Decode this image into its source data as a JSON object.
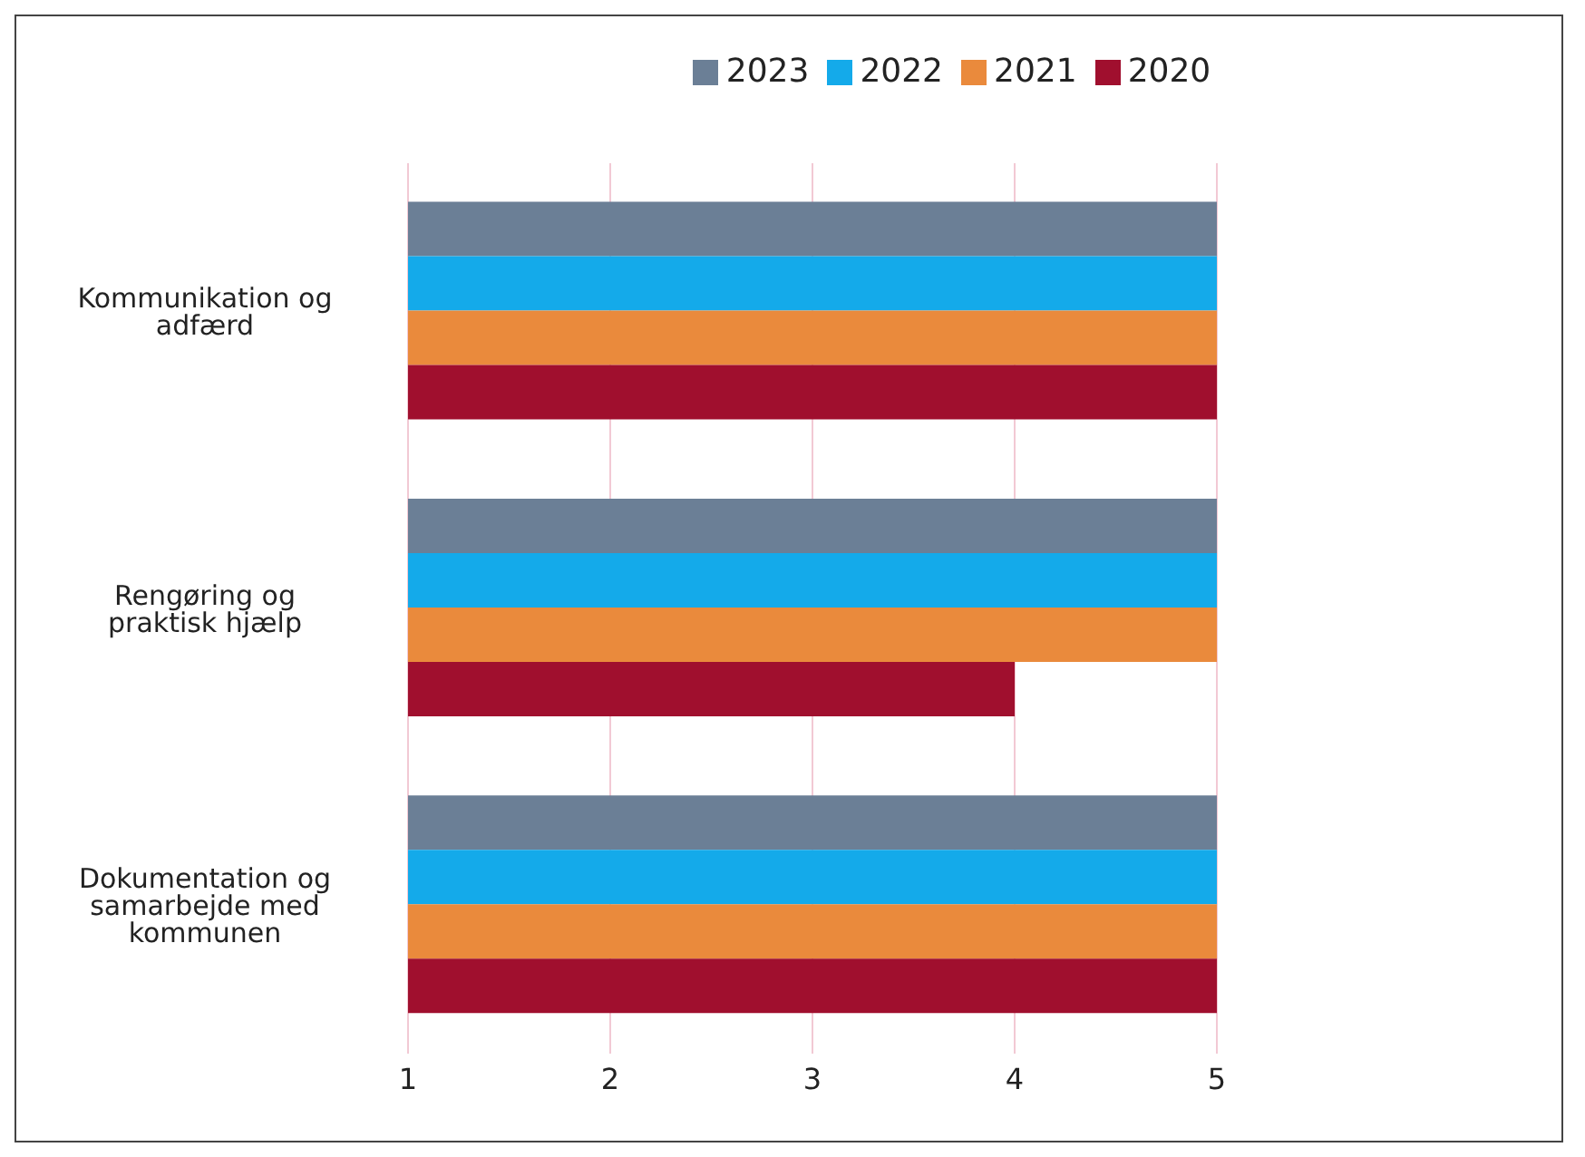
{
  "chart_data": {
    "type": "bar",
    "orientation": "horizontal",
    "categories": [
      "Kommunikation og adfærd",
      "Rengøring og praktisk hjælp",
      "Dokumentation og samarbejde med kommunen"
    ],
    "series": [
      {
        "name": "2023",
        "color": "#6b7f96",
        "values": [
          5,
          5,
          5
        ]
      },
      {
        "name": "2022",
        "color": "#14aaea",
        "values": [
          5,
          5,
          5
        ]
      },
      {
        "name": "2021",
        "color": "#ea8a3c",
        "values": [
          5,
          5,
          5
        ]
      },
      {
        "name": "2020",
        "color": "#a00f2e",
        "values": [
          5,
          4,
          5
        ]
      }
    ],
    "xlim": [
      1,
      5
    ],
    "xticks": [
      1,
      2,
      3,
      4,
      5
    ],
    "grid": "x",
    "legend": "top"
  }
}
